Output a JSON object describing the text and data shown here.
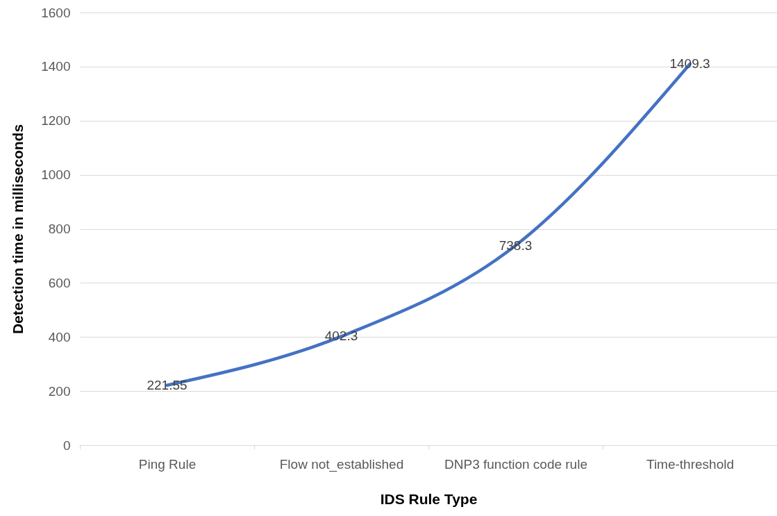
{
  "chart_data": {
    "type": "line",
    "xlabel": "IDS Rule Type",
    "ylabel": "Detection time in milliseconds",
    "categories": [
      "Ping Rule",
      "Flow not_established",
      "DNP3 function code rule",
      "Time-threshold"
    ],
    "series": [
      {
        "color": "#4472c4",
        "values": [
          221.55,
          402.3,
          738.3,
          1409.3
        ]
      }
    ],
    "ylim": [
      0,
      1600
    ],
    "yticks": [
      0,
      200,
      400,
      600,
      800,
      1000,
      1200,
      1400,
      1600
    ],
    "grid": "y",
    "data_labels": true,
    "marker": "none",
    "line_style": "solid"
  }
}
